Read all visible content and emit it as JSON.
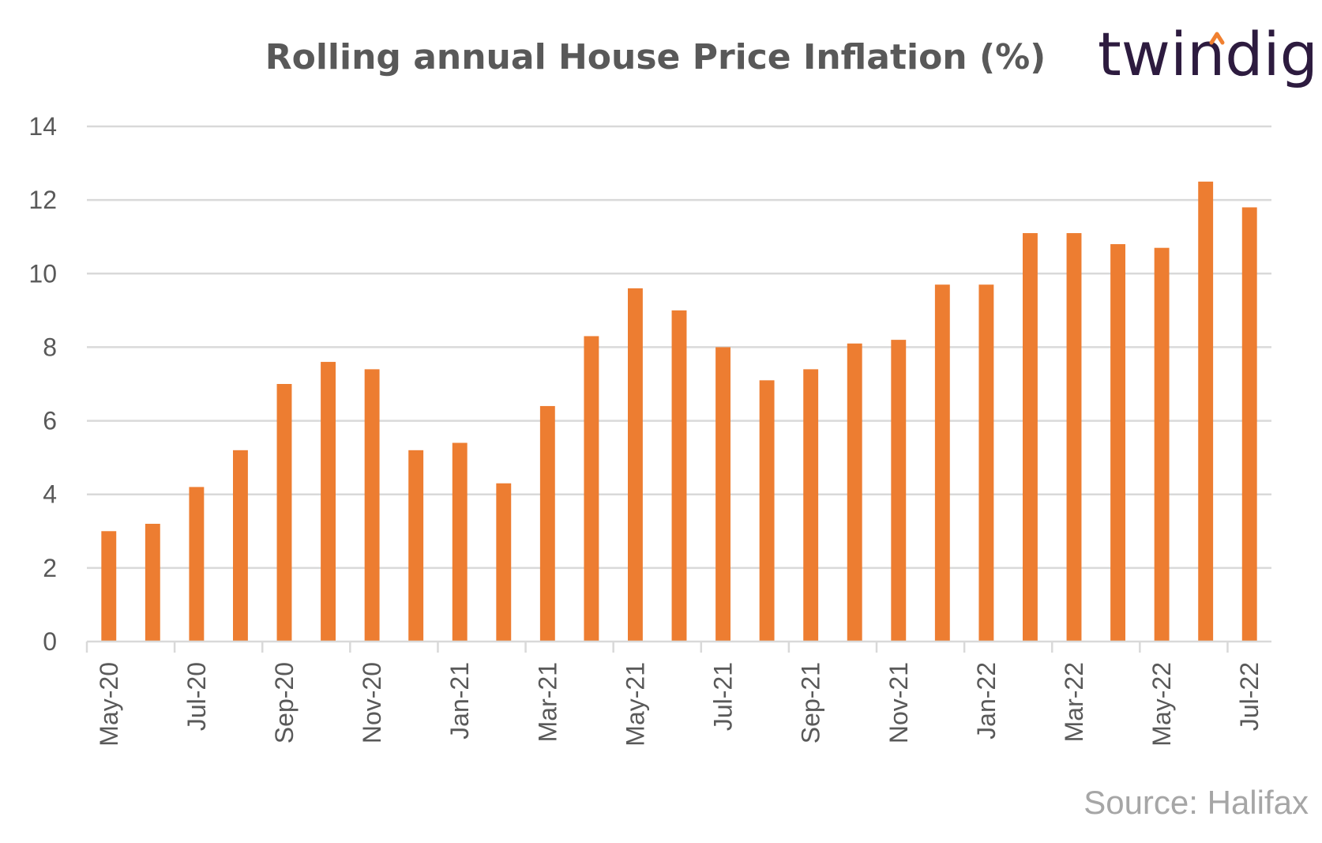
{
  "brand": {
    "name": "twindig",
    "accent_color": "#f08030",
    "text_color": "#2d1b3f"
  },
  "source": "Source: Halifax",
  "chart_data": {
    "type": "bar",
    "title": "Rolling annual House Price Inflation (%)",
    "xlabel": "",
    "ylabel": "",
    "ylim": [
      0,
      14
    ],
    "yticks": [
      0,
      2,
      4,
      6,
      8,
      10,
      12,
      14
    ],
    "grid": true,
    "legend": "none",
    "bar_color": "#ed7d31",
    "categories": [
      "May-20",
      "Jun-20",
      "Jul-20",
      "Aug-20",
      "Sep-20",
      "Oct-20",
      "Nov-20",
      "Dec-20",
      "Jan-21",
      "Feb-21",
      "Mar-21",
      "Apr-21",
      "May-21",
      "Jun-21",
      "Jul-21",
      "Aug-21",
      "Sep-21",
      "Oct-21",
      "Nov-21",
      "Dec-21",
      "Jan-22",
      "Feb-22",
      "Mar-22",
      "Apr-22",
      "May-22",
      "Jun-22",
      "Jul-22"
    ],
    "xtick_labels": [
      "May-20",
      "Jul-20",
      "Sep-20",
      "Nov-20",
      "Jan-21",
      "Mar-21",
      "May-21",
      "Jul-21",
      "Sep-21",
      "Nov-21",
      "Jan-22",
      "Mar-22",
      "May-22",
      "Jul-22"
    ],
    "values": [
      3.0,
      3.2,
      4.2,
      5.2,
      7.0,
      7.6,
      7.4,
      5.2,
      5.4,
      4.3,
      6.4,
      8.3,
      9.6,
      9.0,
      8.0,
      7.1,
      7.4,
      8.1,
      8.2,
      9.7,
      9.7,
      11.1,
      11.1,
      10.8,
      10.7,
      12.5,
      11.8
    ]
  }
}
